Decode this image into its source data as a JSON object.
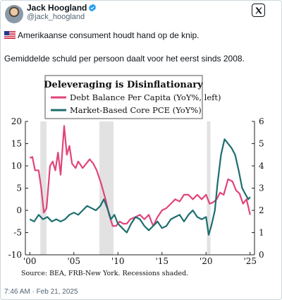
{
  "tweet": {
    "author_name": "Jack Hoogland",
    "author_handle": "@jack_hoogland",
    "line1": "Amerikaanse consument houdt hand op de knip.",
    "line2": "Gemiddelde schuld per persoon daalt voor het eerst sinds 2008.",
    "timestamp": "7:46 AM · Feb 21, 2025",
    "verified_color": "#1d9bf0",
    "flag_icon": "us-flag-icon",
    "logo_icon": "x-logo-icon"
  },
  "chart_data": {
    "type": "line",
    "title": "Deleveraging is Disinflationary",
    "source": "Source: BEA, FRB-New York. Recessions shaded.",
    "x_range": [
      1999.5,
      2025.5
    ],
    "x_ticks": [
      {
        "x": 2000,
        "label": "'00"
      },
      {
        "x": 2005,
        "label": "'05"
      },
      {
        "x": 2010,
        "label": "'10"
      },
      {
        "x": 2015,
        "label": "'15"
      },
      {
        "x": 2020,
        "label": "'20"
      },
      {
        "x": 2025,
        "label": "'25"
      }
    ],
    "left_axis": {
      "range": [
        -10,
        20
      ],
      "ticks": [
        20,
        15,
        10,
        5,
        0,
        -5,
        -10
      ]
    },
    "right_axis": {
      "range": [
        0,
        6
      ],
      "ticks": [
        6,
        5,
        4,
        3,
        2,
        1,
        0
      ]
    },
    "recessions": [
      [
        2001.2,
        2001.9
      ],
      [
        2007.9,
        2009.5
      ],
      [
        2020.1,
        2020.5
      ]
    ],
    "grid": false,
    "legend_placement": "top",
    "series": [
      {
        "name": "Debt Balance Per Capita (YoY%, left)",
        "color": "#e0457b",
        "axis": "left",
        "points": [
          [
            2000.0,
            11.8
          ],
          [
            2000.3,
            12.0
          ],
          [
            2000.6,
            9.0
          ],
          [
            2001.0,
            9.0
          ],
          [
            2001.3,
            5.0
          ],
          [
            2001.6,
            -0.5
          ],
          [
            2001.9,
            0.5
          ],
          [
            2002.3,
            10.0
          ],
          [
            2002.6,
            11.0
          ],
          [
            2002.9,
            9.0
          ],
          [
            2003.2,
            13.0
          ],
          [
            2003.5,
            8.0
          ],
          [
            2003.9,
            19.0
          ],
          [
            2004.2,
            12.5
          ],
          [
            2004.5,
            14.5
          ],
          [
            2004.8,
            10.5
          ],
          [
            2005.2,
            9.5
          ],
          [
            2005.5,
            11.0
          ],
          [
            2006.0,
            9.5
          ],
          [
            2006.4,
            10.5
          ],
          [
            2006.8,
            11.5
          ],
          [
            2007.2,
            10.5
          ],
          [
            2007.6,
            9.0
          ],
          [
            2008.1,
            6.0
          ],
          [
            2008.6,
            2.5
          ],
          [
            2009.0,
            -1.0
          ],
          [
            2009.4,
            -3.5
          ],
          [
            2009.8,
            -3.5
          ],
          [
            2010.2,
            -2.5
          ],
          [
            2010.6,
            -3.0
          ],
          [
            2011.0,
            -3.0
          ],
          [
            2011.4,
            -2.0
          ],
          [
            2012.0,
            -1.5
          ],
          [
            2012.5,
            -1.0
          ],
          [
            2013.0,
            -2.0
          ],
          [
            2013.5,
            -1.0
          ],
          [
            2014.0,
            -3.5
          ],
          [
            2014.5,
            -1.5
          ],
          [
            2015.0,
            0.0
          ],
          [
            2015.5,
            0.5
          ],
          [
            2016.0,
            1.5
          ],
          [
            2016.5,
            2.5
          ],
          [
            2017.0,
            2.0
          ],
          [
            2017.5,
            3.5
          ],
          [
            2018.0,
            3.5
          ],
          [
            2018.5,
            2.5
          ],
          [
            2019.0,
            3.5
          ],
          [
            2019.5,
            2.5
          ],
          [
            2020.0,
            3.5
          ],
          [
            2020.4,
            1.5
          ],
          [
            2020.8,
            1.8
          ],
          [
            2021.2,
            2.5
          ],
          [
            2021.6,
            4.0
          ],
          [
            2022.0,
            3.5
          ],
          [
            2022.5,
            7.0
          ],
          [
            2023.0,
            6.5
          ],
          [
            2023.4,
            4.5
          ],
          [
            2023.8,
            3.8
          ],
          [
            2024.2,
            1.5
          ],
          [
            2024.6,
            2.5
          ],
          [
            2025.0,
            -1.0
          ]
        ]
      },
      {
        "name": "Market-Based Core PCE (YoY%)",
        "color": "#1d6e6e",
        "axis": "right",
        "points": [
          [
            2000.0,
            1.6
          ],
          [
            2000.5,
            1.5
          ],
          [
            2001.0,
            1.8
          ],
          [
            2001.5,
            1.6
          ],
          [
            2002.0,
            1.7
          ],
          [
            2002.5,
            1.5
          ],
          [
            2003.0,
            1.6
          ],
          [
            2003.5,
            1.5
          ],
          [
            2004.0,
            1.6
          ],
          [
            2004.5,
            1.8
          ],
          [
            2005.0,
            1.9
          ],
          [
            2005.5,
            1.8
          ],
          [
            2006.0,
            2.0
          ],
          [
            2006.5,
            2.2
          ],
          [
            2007.0,
            2.1
          ],
          [
            2007.5,
            2.0
          ],
          [
            2008.0,
            2.2
          ],
          [
            2008.4,
            2.5
          ],
          [
            2008.8,
            2.1
          ],
          [
            2009.2,
            1.6
          ],
          [
            2009.6,
            1.8
          ],
          [
            2010.0,
            1.4
          ],
          [
            2010.5,
            1.2
          ],
          [
            2011.0,
            1.0
          ],
          [
            2011.5,
            1.4
          ],
          [
            2012.0,
            1.7
          ],
          [
            2012.5,
            1.6
          ],
          [
            2013.0,
            1.3
          ],
          [
            2013.5,
            1.1
          ],
          [
            2014.0,
            1.3
          ],
          [
            2014.5,
            1.5
          ],
          [
            2015.0,
            1.2
          ],
          [
            2015.5,
            1.3
          ],
          [
            2016.0,
            1.6
          ],
          [
            2016.5,
            1.7
          ],
          [
            2017.0,
            1.8
          ],
          [
            2017.5,
            1.5
          ],
          [
            2018.0,
            1.8
          ],
          [
            2018.5,
            2.0
          ],
          [
            2019.0,
            1.7
          ],
          [
            2019.5,
            1.6
          ],
          [
            2020.0,
            1.7
          ],
          [
            2020.3,
            0.9
          ],
          [
            2020.6,
            1.3
          ],
          [
            2021.0,
            2.0
          ],
          [
            2021.3,
            3.2
          ],
          [
            2021.7,
            4.5
          ],
          [
            2022.1,
            5.2
          ],
          [
            2022.5,
            5.0
          ],
          [
            2022.9,
            4.8
          ],
          [
            2023.3,
            4.5
          ],
          [
            2023.7,
            3.8
          ],
          [
            2024.1,
            3.0
          ],
          [
            2024.5,
            2.7
          ],
          [
            2024.8,
            2.5
          ],
          [
            2025.0,
            2.6
          ]
        ]
      }
    ]
  }
}
